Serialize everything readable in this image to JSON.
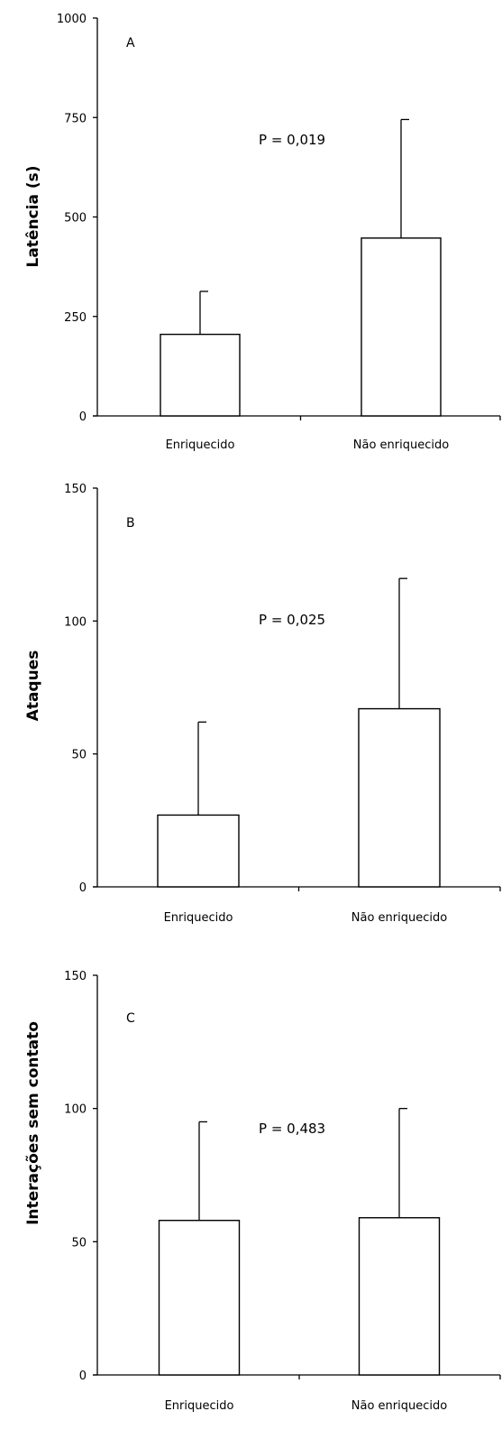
{
  "chart_data": [
    {
      "type": "bar",
      "panel_label": "A",
      "annotation": "P = 0,019",
      "xlabel": "",
      "ylabel": "Latência (s)",
      "ylim": [
        0,
        1000
      ],
      "yticks": [
        0,
        250,
        500,
        750,
        1000
      ],
      "categories": [
        "Enriquecido",
        "Não enriquecido"
      ],
      "values": [
        205,
        447
      ],
      "error_upper": [
        313,
        745
      ]
    },
    {
      "type": "bar",
      "panel_label": "B",
      "annotation": "P = 0,025",
      "xlabel": "",
      "ylabel": "Ataques",
      "ylim": [
        0,
        150
      ],
      "yticks": [
        0,
        50,
        100,
        150
      ],
      "categories": [
        "Enriquecido",
        "Não enriquecido"
      ],
      "values": [
        27,
        67
      ],
      "error_upper": [
        62,
        116
      ]
    },
    {
      "type": "bar",
      "panel_label": "C",
      "annotation": "P = 0,483",
      "xlabel": "",
      "ylabel": "Interações sem contato",
      "ylim": [
        0,
        150
      ],
      "yticks": [
        0,
        50,
        100,
        150
      ],
      "categories": [
        "Enriquecido",
        "Não enriquecido"
      ],
      "values": [
        58,
        59
      ],
      "error_upper": [
        95,
        100
      ]
    }
  ]
}
